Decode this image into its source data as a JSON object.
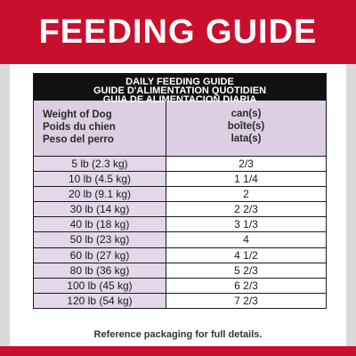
{
  "header": {
    "title": "FEEDING GUIDE"
  },
  "table": {
    "heading_lines": [
      "DAILY FEEDING GUIDE",
      "GUIDE D'ALIMENTATION QUOTIDIEN",
      "GUIA DE ALIMENTACION DIARIA"
    ],
    "col_weight_labels": [
      "Weight of Dog",
      "Poids du chien",
      "Peso del perro"
    ],
    "col_cans_labels": [
      "can(s)",
      "boîte(s)",
      "lata(s)"
    ],
    "rows": [
      {
        "weight": "5 lb (2.3 kg)",
        "cans": "2/3"
      },
      {
        "weight": "10 lb (4.5 kg)",
        "cans": "1 1/4"
      },
      {
        "weight": "20 lb (9.1 kg)",
        "cans": "2"
      },
      {
        "weight": "30 lb (14 kg)",
        "cans": "2 2/3"
      },
      {
        "weight": "40 lb (18 kg)",
        "cans": "3 1/3"
      },
      {
        "weight": "50 lb (23 kg)",
        "cans": "4"
      },
      {
        "weight": "60 lb (27 kg)",
        "cans": "4 1/2"
      },
      {
        "weight": "80 lb (36 kg)",
        "cans": "5 2/3"
      },
      {
        "weight": "100 lb (45 kg)",
        "cans": "6 2/3"
      },
      {
        "weight": "120 lb (54 kg)",
        "cans": "7 2/3"
      }
    ]
  },
  "footer": {
    "note": "Reference packaging for full details."
  },
  "colors": {
    "brand_red": "#c8102e",
    "row_lavender": "#e3d8ea"
  }
}
